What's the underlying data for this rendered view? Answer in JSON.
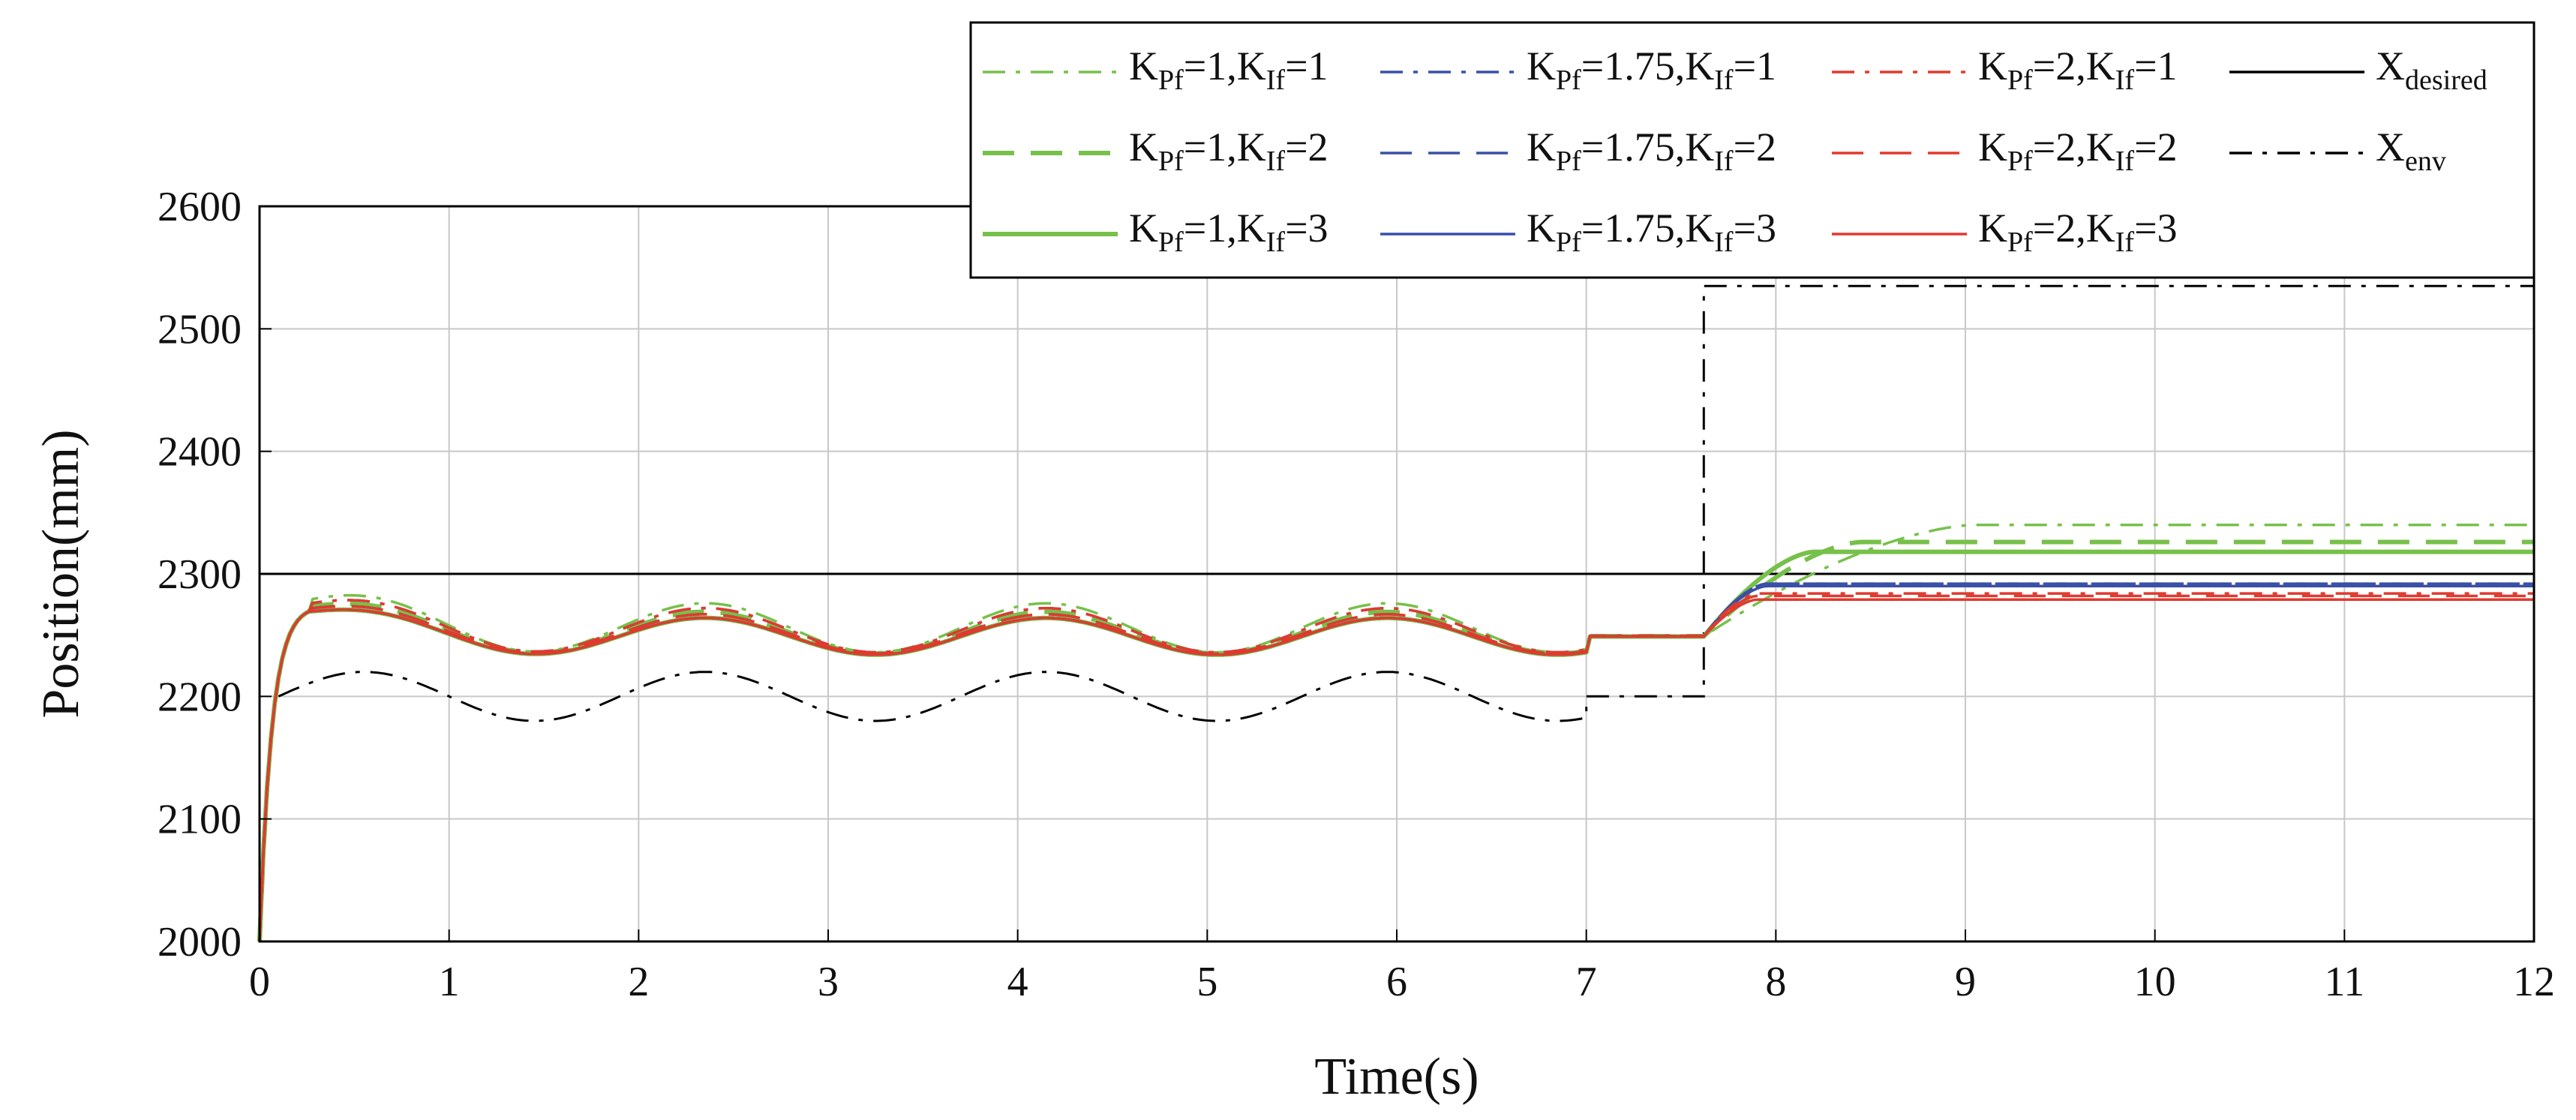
{
  "chart_data": {
    "type": "line",
    "title": "",
    "xlabel": "Time(s)",
    "ylabel": "Position(mm)",
    "xlim": [
      0,
      12
    ],
    "ylim": [
      2000,
      2600
    ],
    "xticks": [
      "0",
      "1",
      "2",
      "3",
      "4",
      "5",
      "6",
      "7",
      "8",
      "9",
      "10",
      "11",
      "12"
    ],
    "yticks": [
      "2000",
      "2100",
      "2200",
      "2300",
      "2400",
      "2500",
      "2600"
    ],
    "grid": true,
    "legend_position": "top-right, outside plot",
    "reference_lines": {
      "x_desired": 2300,
      "env_step_time": 7.62,
      "env_before_7": {
        "center": 2200,
        "amplitude": 20,
        "period": 1.8,
        "from": 0.1
      },
      "env_flat_7_to_step": 2200,
      "env_after_step": 2535
    },
    "series": [
      {
        "name": "K_Pf=1,K_If=1",
        "label_main": "K",
        "sub1": "Pf",
        "mid": "=1,K",
        "sub2": "If",
        "end": "=1",
        "color": "#77c04a",
        "style": "dashdot",
        "width": "thin",
        "values": {
          "oscillation_offset": 6,
          "oscillation_amp": 20,
          "steady_after_step": 2340,
          "settle_time": 9.05
        }
      },
      {
        "name": "K_Pf=1,K_If=2",
        "label_main": "K",
        "sub1": "Pf",
        "mid": "=1,K",
        "sub2": "If",
        "end": "=2",
        "color": "#77c04a",
        "style": "dashed",
        "width": "thick",
        "values": {
          "oscillation_offset": 2,
          "oscillation_amp": 17,
          "steady_after_step": 2326,
          "settle_time": 8.45
        }
      },
      {
        "name": "K_Pf=1,K_If=3",
        "label_main": "K",
        "sub1": "Pf",
        "mid": "=1,K",
        "sub2": "If",
        "end": "=3",
        "color": "#77c04a",
        "style": "solid",
        "width": "thick",
        "values": {
          "oscillation_offset": -1,
          "oscillation_amp": 15,
          "steady_after_step": 2318,
          "settle_time": 8.2
        }
      },
      {
        "name": "K_Pf=1.75,K_If=1",
        "label_main": "K",
        "sub1": "Pf",
        "mid": "=1.75,K",
        "sub2": "If",
        "end": "=1",
        "color": "#3a4fa8",
        "style": "dashdot",
        "width": "thin",
        "values": {
          "oscillation_offset": 4,
          "oscillation_amp": 18,
          "steady_after_step": 2292,
          "settle_time": 7.95
        }
      },
      {
        "name": "K_Pf=1.75,K_If=2",
        "label_main": "K",
        "sub1": "Pf",
        "mid": "=1.75,K",
        "sub2": "If",
        "end": "=2",
        "color": "#3a4fa8",
        "style": "dashed",
        "width": "thin",
        "values": {
          "oscillation_offset": 1,
          "oscillation_amp": 16,
          "steady_after_step": 2292,
          "settle_time": 7.95
        }
      },
      {
        "name": "K_Pf=1.75,K_If=3",
        "label_main": "K",
        "sub1": "Pf",
        "mid": "=1.75,K",
        "sub2": "If",
        "end": "=3",
        "color": "#3a4fa8",
        "style": "solid",
        "width": "thin",
        "values": {
          "oscillation_offset": -1,
          "oscillation_amp": 15,
          "steady_after_step": 2290,
          "settle_time": 7.95
        }
      },
      {
        "name": "K_Pf=2,K_If=1",
        "label_main": "K",
        "sub1": "Pf",
        "mid": "=2,K",
        "sub2": "If",
        "end": "=1",
        "color": "#e03a2e",
        "style": "dashdot",
        "width": "thin",
        "values": {
          "oscillation_offset": 4,
          "oscillation_amp": 18,
          "steady_after_step": 2284,
          "settle_time": 7.9
        }
      },
      {
        "name": "K_Pf=2,K_If=2",
        "label_main": "K",
        "sub1": "Pf",
        "mid": "=2,K",
        "sub2": "If",
        "end": "=2",
        "color": "#e03a2e",
        "style": "dashed",
        "width": "thin",
        "values": {
          "oscillation_offset": 1,
          "oscillation_amp": 16,
          "steady_after_step": 2282,
          "settle_time": 7.9
        }
      },
      {
        "name": "K_Pf=2,K_If=3",
        "label_main": "K",
        "sub1": "Pf",
        "mid": "=2,K",
        "sub2": "If",
        "end": "=3",
        "color": "#e03a2e",
        "style": "solid",
        "width": "thin",
        "values": {
          "oscillation_offset": -1,
          "oscillation_amp": 15,
          "steady_after_step": 2279,
          "settle_time": 7.9
        }
      }
    ],
    "reference_legend": [
      {
        "name": "X_desired",
        "main": "X",
        "sub": "desired",
        "color": "#000000",
        "style": "solid"
      },
      {
        "name": "X_env",
        "main": "X",
        "sub": "env",
        "color": "#000000",
        "style": "dashdot"
      }
    ]
  }
}
